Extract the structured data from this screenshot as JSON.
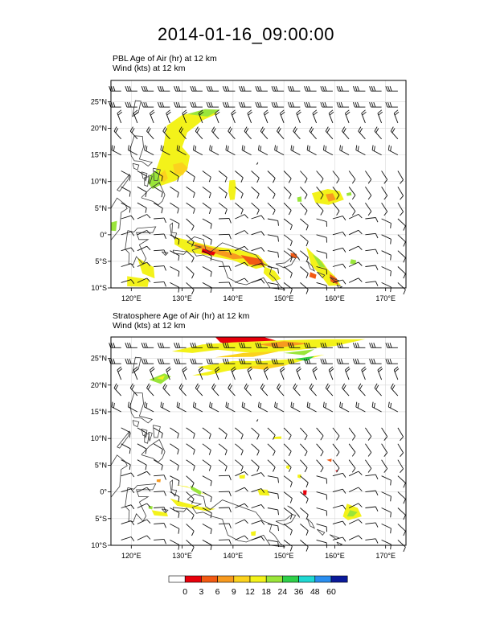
{
  "title": "2014-01-16_09:00:00",
  "panels": [
    {
      "id": "pbl",
      "line1": "PBL Age of Air   (hr)     at   12 km",
      "line2": "Wind   (kts)     at   12 km"
    },
    {
      "id": "strat",
      "line1": "Stratosphere Age of Air   (hr)     at   12 km",
      "line2": "Wind   (kts)     at   12 km"
    }
  ],
  "axes": {
    "lon_labels": [
      "120°E",
      "130°E",
      "140°E",
      "150°E",
      "160°E",
      "170°E"
    ],
    "lat_labels": [
      "25°N",
      "20°N",
      "15°N",
      "10°N",
      "5°N",
      "0°",
      "5°S",
      "10°S"
    ],
    "lon_range": [
      116,
      174
    ],
    "lat_range": [
      -10,
      29
    ]
  },
  "colorbar": {
    "labels": [
      "0",
      "3",
      "6",
      "9",
      "12",
      "18",
      "24",
      "36",
      "48",
      "60"
    ],
    "colors": [
      "#ffffff",
      "#e8000b",
      "#f25a13",
      "#f79a1f",
      "#fbd21e",
      "#f3f21a",
      "#9ae53a",
      "#2fd04a",
      "#1fd8d2",
      "#2a8ef0",
      "#0a1a9a"
    ]
  },
  "colors": {
    "red": "#e8000b",
    "orange": "#f25a13",
    "lightorange": "#f79a1f",
    "gold": "#fbd21e",
    "yellow": "#f3f21a",
    "lightgreen": "#9ae53a",
    "green": "#2fd04a"
  }
}
